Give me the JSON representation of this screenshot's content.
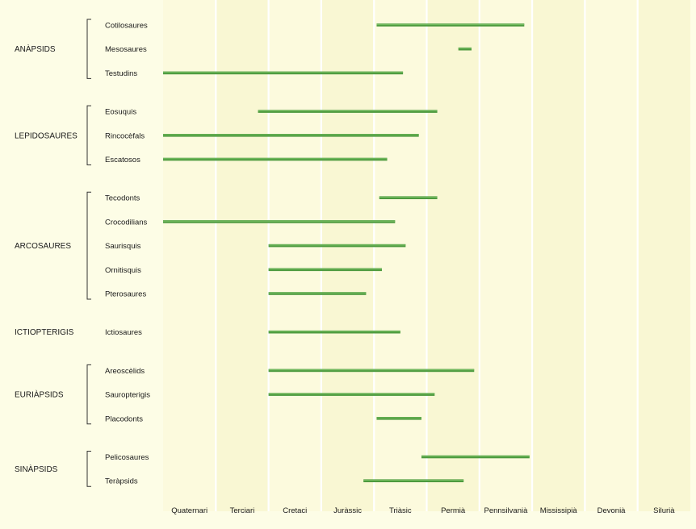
{
  "chart_data": {
    "type": "bar",
    "periods": [
      "Quaternari",
      "Terciari",
      "Cretaci",
      "Juràssic",
      "Triàsic",
      "Permià",
      "Pennsilvanià",
      "Mississipià",
      "Devonià",
      "Silurià"
    ],
    "groups": [
      {
        "name": "ANÀPSIDS",
        "taxa": [
          {
            "name": "Cotilosaures",
            "start": 4.05,
            "end": 6.85
          },
          {
            "name": "Mesosaures",
            "start": 5.6,
            "end": 5.85
          },
          {
            "name": "Testudins",
            "start": 0.0,
            "end": 4.55
          }
        ]
      },
      {
        "name": "LEPIDOSAURES",
        "taxa": [
          {
            "name": "Eosuquis",
            "start": 1.8,
            "end": 5.2
          },
          {
            "name": "Rincocèfals",
            "start": 0.0,
            "end": 4.85
          },
          {
            "name": "Escatosos",
            "start": 0.0,
            "end": 4.25
          }
        ]
      },
      {
        "name": "ARCOSAURES",
        "taxa": [
          {
            "name": "Tecodonts",
            "start": 4.1,
            "end": 5.2
          },
          {
            "name": "Crocodilians",
            "start": 0.0,
            "end": 4.4
          },
          {
            "name": "Saurisquis",
            "start": 2.0,
            "end": 4.6
          },
          {
            "name": "Ornitisquis",
            "start": 2.0,
            "end": 4.15
          },
          {
            "name": "Pterosaures",
            "start": 2.0,
            "end": 3.85
          }
        ]
      },
      {
        "name": "ICTIOPTERIGIS",
        "taxa": [
          {
            "name": "Ictiosaures",
            "start": 2.0,
            "end": 4.5
          }
        ]
      },
      {
        "name": "EURIÀPSIDS",
        "taxa": [
          {
            "name": "Areoscèlids",
            "start": 2.0,
            "end": 5.9
          },
          {
            "name": "Sauropterigis",
            "start": 2.0,
            "end": 5.15
          },
          {
            "name": "Placodonts",
            "start": 4.05,
            "end": 4.9
          }
        ]
      },
      {
        "name": "SINÀPSIDS",
        "taxa": [
          {
            "name": "Pelicosaures",
            "start": 4.9,
            "end": 6.95
          },
          {
            "name": "Teràpsids",
            "start": 3.8,
            "end": 5.7
          }
        ]
      }
    ],
    "colors": {
      "background": "#fdfde6",
      "band_a": "#fcfadd",
      "band_b": "#f9f7d3",
      "grid": "#ffffff",
      "bar": "#4d9a3e",
      "bar_highlight": "#7cc266",
      "bracket": "#333333"
    }
  }
}
